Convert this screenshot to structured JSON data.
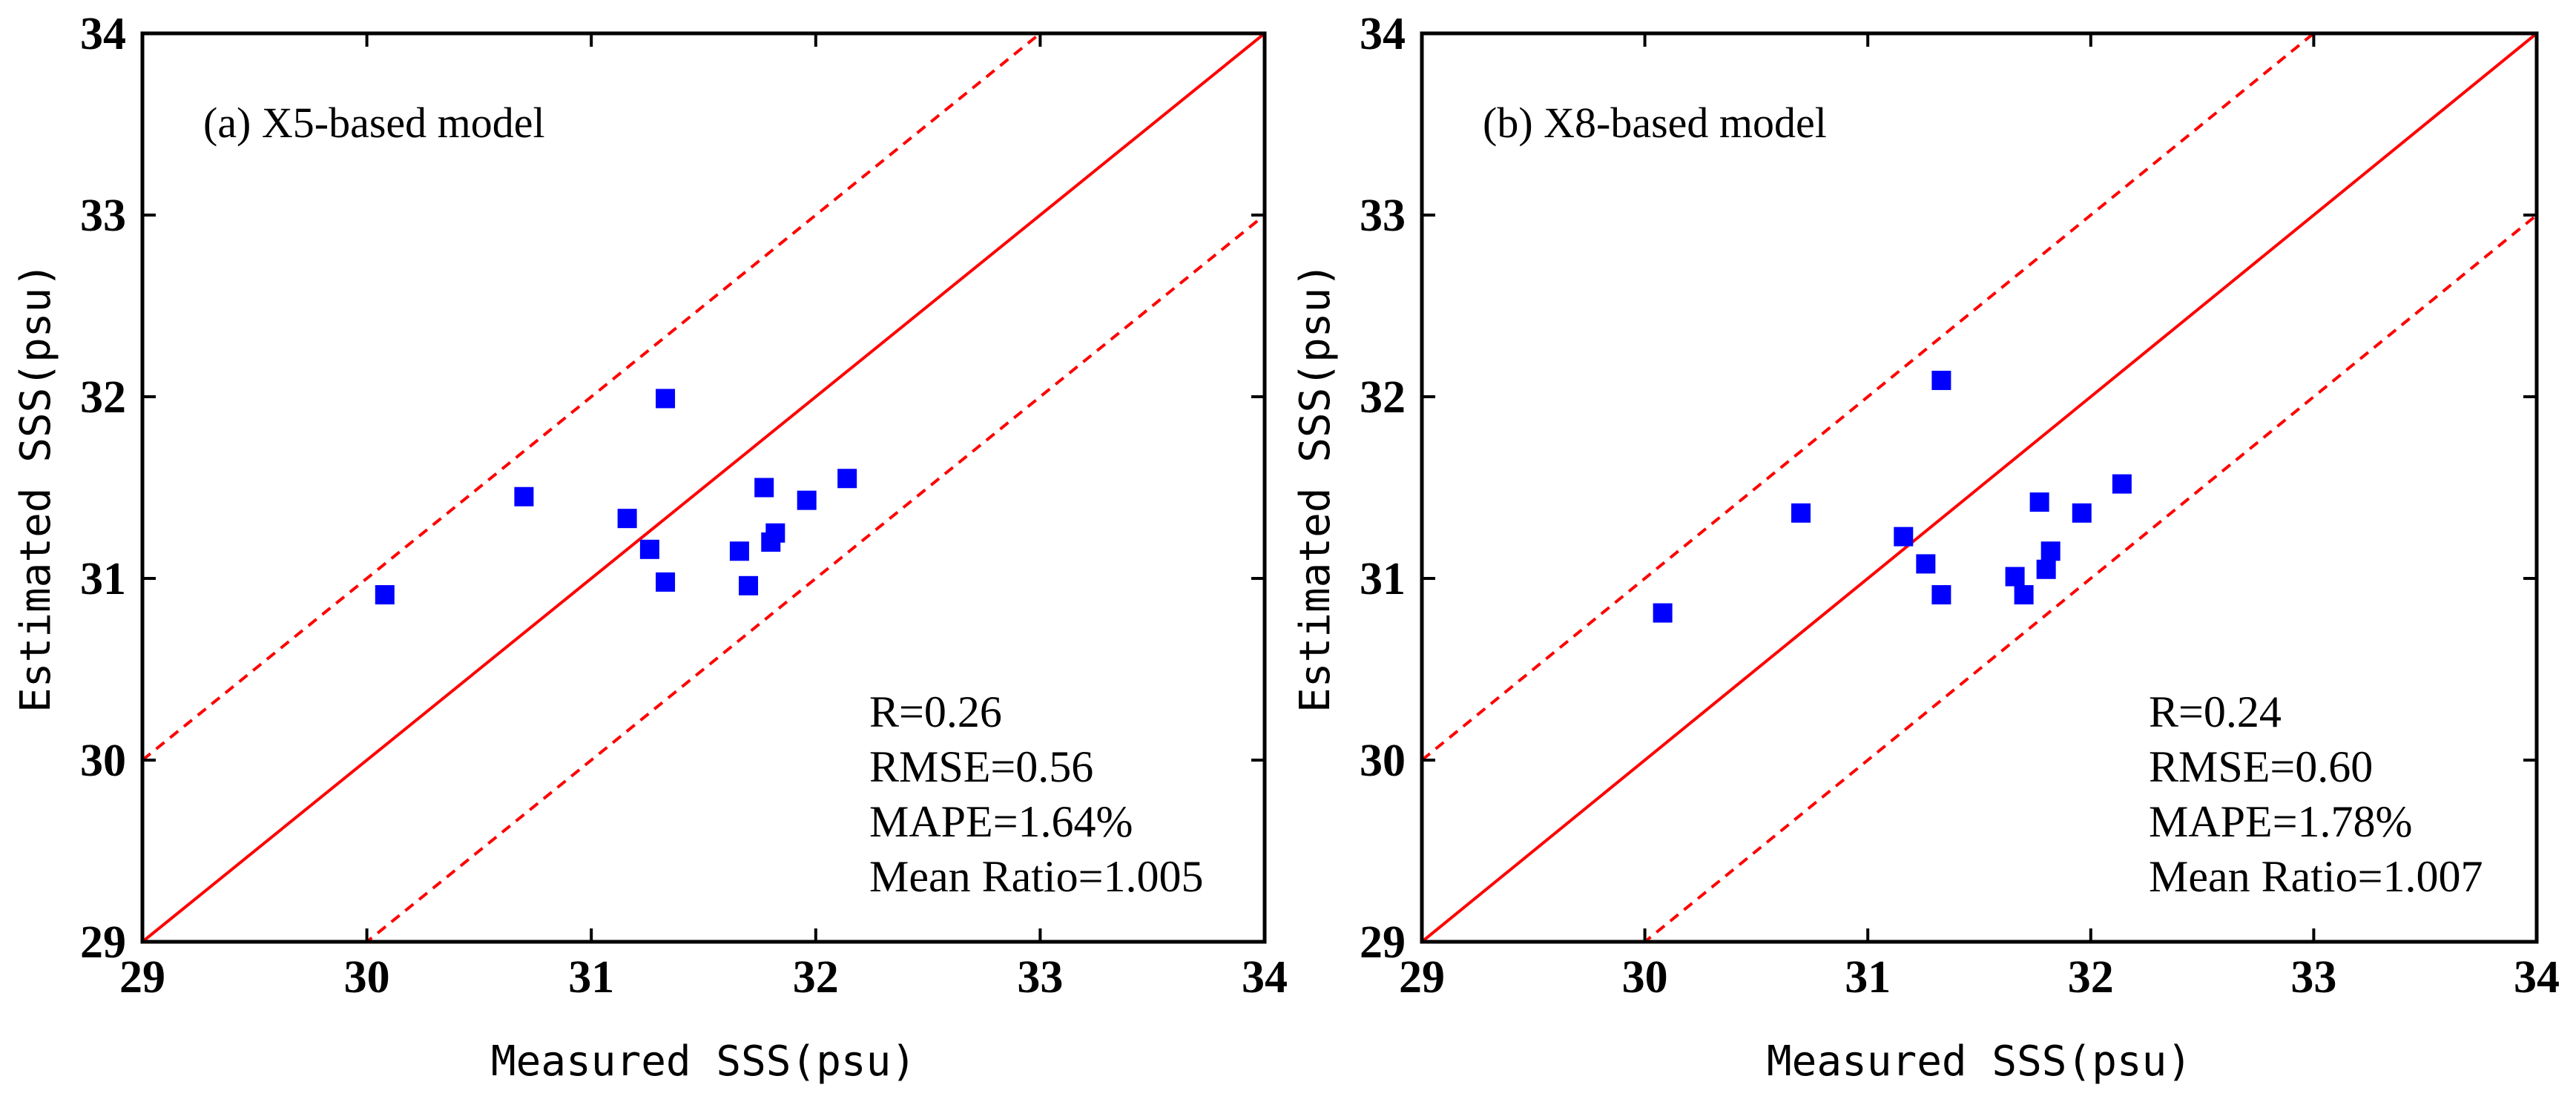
{
  "chart_data": [
    {
      "type": "scatter",
      "title": "(a) X5-based model",
      "xlabel": "Measured SSS(psu)",
      "ylabel": "Estimated SSS(psu)",
      "xlim": [
        29,
        34
      ],
      "ylim": [
        29,
        34
      ],
      "xticks": [
        "29",
        "30",
        "31",
        "32",
        "33",
        "34"
      ],
      "yticks": [
        "29",
        "30",
        "31",
        "32",
        "33",
        "34"
      ],
      "reference_lines": {
        "one_to_one": true,
        "offset_band": 1
      },
      "marker_color": "#0000ff",
      "line_color": "#ff0000",
      "points": [
        {
          "x": 30.08,
          "y": 30.91
        },
        {
          "x": 30.7,
          "y": 31.45
        },
        {
          "x": 31.16,
          "y": 31.33
        },
        {
          "x": 31.26,
          "y": 31.16
        },
        {
          "x": 31.33,
          "y": 31.99
        },
        {
          "x": 31.33,
          "y": 30.98
        },
        {
          "x": 31.66,
          "y": 31.15
        },
        {
          "x": 31.7,
          "y": 30.96
        },
        {
          "x": 31.77,
          "y": 31.5
        },
        {
          "x": 31.8,
          "y": 31.2
        },
        {
          "x": 31.82,
          "y": 31.25
        },
        {
          "x": 31.96,
          "y": 31.43
        },
        {
          "x": 32.14,
          "y": 31.55
        }
      ],
      "stats": [
        "R=0.26",
        "RMSE=0.56",
        "MAPE=1.64%",
        "Mean Ratio=1.005"
      ]
    },
    {
      "type": "scatter",
      "title": "(b) X8-based model",
      "xlabel": "Measured SSS(psu)",
      "ylabel": "Estimated SSS(psu)",
      "xlim": [
        29,
        34
      ],
      "ylim": [
        29,
        34
      ],
      "xticks": [
        "29",
        "30",
        "31",
        "32",
        "33",
        "34"
      ],
      "yticks": [
        "29",
        "30",
        "31",
        "32",
        "33",
        "34"
      ],
      "reference_lines": {
        "one_to_one": true,
        "offset_band": 1
      },
      "marker_color": "#0000ff",
      "line_color": "#ff0000",
      "points": [
        {
          "x": 30.08,
          "y": 30.81
        },
        {
          "x": 30.7,
          "y": 31.36
        },
        {
          "x": 31.16,
          "y": 31.23
        },
        {
          "x": 31.26,
          "y": 31.08
        },
        {
          "x": 31.33,
          "y": 32.09
        },
        {
          "x": 31.33,
          "y": 30.91
        },
        {
          "x": 31.66,
          "y": 31.01
        },
        {
          "x": 31.7,
          "y": 30.91
        },
        {
          "x": 31.77,
          "y": 31.42
        },
        {
          "x": 31.8,
          "y": 31.05
        },
        {
          "x": 31.82,
          "y": 31.15
        },
        {
          "x": 31.96,
          "y": 31.36
        },
        {
          "x": 32.14,
          "y": 31.52
        }
      ],
      "stats": [
        "R=0.24",
        "RMSE=0.60",
        "MAPE=1.78%",
        "Mean Ratio=1.007"
      ]
    }
  ]
}
